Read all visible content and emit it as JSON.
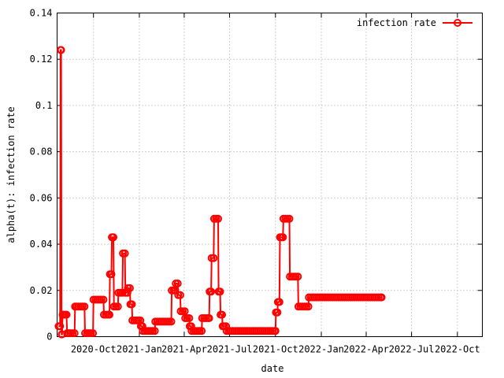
{
  "chart_data": {
    "type": "line",
    "title": "",
    "xlabel": "date",
    "ylabel": "alpha(t): infection rate",
    "x_range": [
      "2020-07-20",
      "2022-11-20"
    ],
    "ylim": [
      0,
      0.14
    ],
    "y_ticks": [
      "0",
      "0.02",
      "0.04",
      "0.06",
      "0.08",
      "0.1",
      "0.12",
      "0.14"
    ],
    "x_ticks": [
      {
        "date": "2020-10-01",
        "label": "2020-Oct"
      },
      {
        "date": "2021-01-01",
        "label": "2021-Jan"
      },
      {
        "date": "2021-04-01",
        "label": "2021-Apr"
      },
      {
        "date": "2021-07-01",
        "label": "2021-Jul"
      },
      {
        "date": "2021-10-01",
        "label": "2021-Oct"
      },
      {
        "date": "2022-01-01",
        "label": "2022-Jan"
      },
      {
        "date": "2022-04-01",
        "label": "2022-Apr"
      },
      {
        "date": "2022-07-01",
        "label": "2022-Jul"
      },
      {
        "date": "2022-10-01",
        "label": "2022-Oct"
      }
    ],
    "grid": true,
    "legend_position": "top-right",
    "color": "#ff0000",
    "marker": "circle",
    "series": [
      {
        "name": "infection rate",
        "points": [
          [
            "2020-07-23",
            0.0045
          ],
          [
            "2020-07-26",
            0.0045
          ],
          [
            "2020-07-27",
            0.124
          ],
          [
            "2020-07-28",
            0.124
          ],
          [
            "2020-07-29",
            0.001
          ],
          [
            "2020-07-30",
            0.001
          ],
          [
            "2020-07-31",
            0.0095
          ],
          [
            "2020-08-02",
            0.0095
          ],
          [
            "2020-08-05",
            0.0095
          ],
          [
            "2020-08-08",
            0.0095
          ],
          [
            "2020-08-09",
            0.0015
          ],
          [
            "2020-08-12",
            0.0015
          ],
          [
            "2020-08-16",
            0.0015
          ],
          [
            "2020-08-20",
            0.0015
          ],
          [
            "2020-08-24",
            0.0015
          ],
          [
            "2020-08-25",
            0.013
          ],
          [
            "2020-08-28",
            0.013
          ],
          [
            "2020-09-01",
            0.013
          ],
          [
            "2020-09-05",
            0.013
          ],
          [
            "2020-09-09",
            0.013
          ],
          [
            "2020-09-13",
            0.013
          ],
          [
            "2020-09-14",
            0.0015
          ],
          [
            "2020-09-18",
            0.0015
          ],
          [
            "2020-09-22",
            0.0015
          ],
          [
            "2020-09-26",
            0.0015
          ],
          [
            "2020-09-30",
            0.0015
          ],
          [
            "2020-10-01",
            0.016
          ],
          [
            "2020-10-05",
            0.016
          ],
          [
            "2020-10-09",
            0.016
          ],
          [
            "2020-10-13",
            0.016
          ],
          [
            "2020-10-17",
            0.016
          ],
          [
            "2020-10-21",
            0.016
          ],
          [
            "2020-10-22",
            0.0095
          ],
          [
            "2020-10-26",
            0.0095
          ],
          [
            "2020-10-30",
            0.0095
          ],
          [
            "2020-11-02",
            0.0095
          ],
          [
            "2020-11-03",
            0.027
          ],
          [
            "2020-11-06",
            0.027
          ],
          [
            "2020-11-07",
            0.043
          ],
          [
            "2020-11-10",
            0.043
          ],
          [
            "2020-11-11",
            0.013
          ],
          [
            "2020-11-15",
            0.013
          ],
          [
            "2020-11-19",
            0.013
          ],
          [
            "2020-11-20",
            0.019
          ],
          [
            "2020-11-24",
            0.019
          ],
          [
            "2020-11-28",
            0.019
          ],
          [
            "2020-11-29",
            0.036
          ],
          [
            "2020-12-03",
            0.036
          ],
          [
            "2020-12-04",
            0.019
          ],
          [
            "2020-12-08",
            0.019
          ],
          [
            "2020-12-09",
            0.021
          ],
          [
            "2020-12-13",
            0.021
          ],
          [
            "2020-12-14",
            0.014
          ],
          [
            "2020-12-17",
            0.014
          ],
          [
            "2020-12-18",
            0.007
          ],
          [
            "2020-12-22",
            0.007
          ],
          [
            "2020-12-26",
            0.007
          ],
          [
            "2020-12-30",
            0.007
          ],
          [
            "2021-01-03",
            0.007
          ],
          [
            "2021-01-04",
            0.0045
          ],
          [
            "2021-01-07",
            0.0045
          ],
          [
            "2021-01-08",
            0.0025
          ],
          [
            "2021-01-12",
            0.0025
          ],
          [
            "2021-01-16",
            0.0025
          ],
          [
            "2021-01-20",
            0.0025
          ],
          [
            "2021-01-24",
            0.0025
          ],
          [
            "2021-01-28",
            0.0025
          ],
          [
            "2021-02-01",
            0.0025
          ],
          [
            "2021-02-02",
            0.0065
          ],
          [
            "2021-02-06",
            0.0065
          ],
          [
            "2021-02-10",
            0.0065
          ],
          [
            "2021-02-14",
            0.0065
          ],
          [
            "2021-02-18",
            0.0065
          ],
          [
            "2021-02-22",
            0.0065
          ],
          [
            "2021-02-26",
            0.0065
          ],
          [
            "2021-03-02",
            0.0065
          ],
          [
            "2021-03-06",
            0.0065
          ],
          [
            "2021-03-07",
            0.02
          ],
          [
            "2021-03-11",
            0.02
          ],
          [
            "2021-03-14",
            0.02
          ],
          [
            "2021-03-15",
            0.023
          ],
          [
            "2021-03-19",
            0.023
          ],
          [
            "2021-03-20",
            0.018
          ],
          [
            "2021-03-24",
            0.018
          ],
          [
            "2021-03-25",
            0.011
          ],
          [
            "2021-03-29",
            0.011
          ],
          [
            "2021-04-02",
            0.011
          ],
          [
            "2021-04-03",
            0.008
          ],
          [
            "2021-04-07",
            0.008
          ],
          [
            "2021-04-11",
            0.008
          ],
          [
            "2021-04-12",
            0.0045
          ],
          [
            "2021-04-15",
            0.0045
          ],
          [
            "2021-04-16",
            0.0025
          ],
          [
            "2021-04-20",
            0.0025
          ],
          [
            "2021-04-24",
            0.0025
          ],
          [
            "2021-04-28",
            0.0025
          ],
          [
            "2021-05-02",
            0.0025
          ],
          [
            "2021-05-06",
            0.0025
          ],
          [
            "2021-05-07",
            0.008
          ],
          [
            "2021-05-11",
            0.008
          ],
          [
            "2021-05-15",
            0.008
          ],
          [
            "2021-05-19",
            0.008
          ],
          [
            "2021-05-21",
            0.008
          ],
          [
            "2021-05-22",
            0.0195
          ],
          [
            "2021-05-25",
            0.0195
          ],
          [
            "2021-05-26",
            0.034
          ],
          [
            "2021-05-30",
            0.034
          ],
          [
            "2021-05-31",
            0.051
          ],
          [
            "2021-06-04",
            0.051
          ],
          [
            "2021-06-08",
            0.051
          ],
          [
            "2021-06-09",
            0.0195
          ],
          [
            "2021-06-12",
            0.0195
          ],
          [
            "2021-06-13",
            0.0095
          ],
          [
            "2021-06-16",
            0.0095
          ],
          [
            "2021-06-17",
            0.0045
          ],
          [
            "2021-06-20",
            0.0045
          ],
          [
            "2021-06-24",
            0.0045
          ],
          [
            "2021-06-25",
            0.0025
          ],
          [
            "2021-06-29",
            0.0025
          ],
          [
            "2021-07-03",
            0.0025
          ],
          [
            "2021-07-07",
            0.0025
          ],
          [
            "2021-07-11",
            0.0025
          ],
          [
            "2021-07-15",
            0.0025
          ],
          [
            "2021-07-19",
            0.0025
          ],
          [
            "2021-07-23",
            0.0025
          ],
          [
            "2021-07-27",
            0.0025
          ],
          [
            "2021-07-31",
            0.0025
          ],
          [
            "2021-08-04",
            0.0025
          ],
          [
            "2021-08-08",
            0.0025
          ],
          [
            "2021-08-12",
            0.0025
          ],
          [
            "2021-08-16",
            0.0025
          ],
          [
            "2021-08-20",
            0.0025
          ],
          [
            "2021-08-24",
            0.0025
          ],
          [
            "2021-08-28",
            0.0025
          ],
          [
            "2021-09-01",
            0.0025
          ],
          [
            "2021-09-05",
            0.0025
          ],
          [
            "2021-09-09",
            0.0025
          ],
          [
            "2021-09-13",
            0.0025
          ],
          [
            "2021-09-17",
            0.0025
          ],
          [
            "2021-09-21",
            0.0025
          ],
          [
            "2021-09-25",
            0.0025
          ],
          [
            "2021-09-29",
            0.0025
          ],
          [
            "2021-10-01",
            0.0025
          ],
          [
            "2021-10-02",
            0.0105
          ],
          [
            "2021-10-05",
            0.0105
          ],
          [
            "2021-10-06",
            0.015
          ],
          [
            "2021-10-09",
            0.015
          ],
          [
            "2021-10-10",
            0.043
          ],
          [
            "2021-10-13",
            0.043
          ],
          [
            "2021-10-16",
            0.043
          ],
          [
            "2021-10-17",
            0.051
          ],
          [
            "2021-10-21",
            0.051
          ],
          [
            "2021-10-25",
            0.051
          ],
          [
            "2021-10-29",
            0.051
          ],
          [
            "2021-10-30",
            0.026
          ],
          [
            "2021-11-03",
            0.026
          ],
          [
            "2021-11-07",
            0.026
          ],
          [
            "2021-11-11",
            0.026
          ],
          [
            "2021-11-15",
            0.026
          ],
          [
            "2021-11-16",
            0.013
          ],
          [
            "2021-11-20",
            0.013
          ],
          [
            "2021-11-24",
            0.013
          ],
          [
            "2021-11-28",
            0.013
          ],
          [
            "2021-12-02",
            0.013
          ],
          [
            "2021-12-06",
            0.013
          ],
          [
            "2021-12-07",
            0.017
          ],
          [
            "2021-12-11",
            0.017
          ],
          [
            "2021-12-15",
            0.017
          ],
          [
            "2021-12-19",
            0.017
          ],
          [
            "2021-12-23",
            0.017
          ],
          [
            "2021-12-27",
            0.017
          ],
          [
            "2021-12-31",
            0.017
          ],
          [
            "2022-01-04",
            0.017
          ],
          [
            "2022-01-08",
            0.017
          ],
          [
            "2022-01-12",
            0.017
          ],
          [
            "2022-01-16",
            0.017
          ],
          [
            "2022-01-20",
            0.017
          ],
          [
            "2022-01-24",
            0.017
          ],
          [
            "2022-01-28",
            0.017
          ],
          [
            "2022-02-01",
            0.017
          ],
          [
            "2022-02-05",
            0.017
          ],
          [
            "2022-02-09",
            0.017
          ],
          [
            "2022-02-13",
            0.017
          ],
          [
            "2022-02-17",
            0.017
          ],
          [
            "2022-02-21",
            0.017
          ],
          [
            "2022-02-25",
            0.017
          ],
          [
            "2022-03-01",
            0.017
          ],
          [
            "2022-03-05",
            0.017
          ],
          [
            "2022-03-09",
            0.017
          ],
          [
            "2022-03-13",
            0.017
          ],
          [
            "2022-03-17",
            0.017
          ],
          [
            "2022-03-21",
            0.017
          ],
          [
            "2022-03-25",
            0.017
          ],
          [
            "2022-03-29",
            0.017
          ],
          [
            "2022-04-02",
            0.017
          ],
          [
            "2022-04-06",
            0.017
          ],
          [
            "2022-04-10",
            0.017
          ],
          [
            "2022-04-14",
            0.017
          ],
          [
            "2022-04-18",
            0.017
          ],
          [
            "2022-04-22",
            0.017
          ],
          [
            "2022-04-26",
            0.017
          ],
          [
            "2022-04-30",
            0.017
          ],
          [
            "2022-05-02",
            0.017
          ]
        ]
      }
    ]
  }
}
